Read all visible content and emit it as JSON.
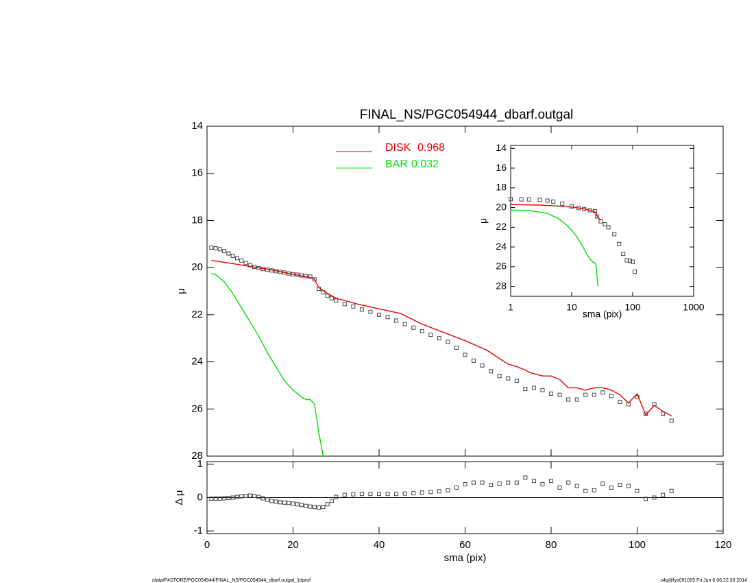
{
  "chart_data": [
    {
      "type": "line",
      "title": "FINAL_NS/PGC054944_dbarf.outgal",
      "ylabel": "μ",
      "xlim": [
        0,
        120
      ],
      "ylim": [
        28,
        14
      ],
      "yticks": [
        14,
        16,
        18,
        20,
        22,
        24,
        26,
        28
      ],
      "series": [
        {
          "color": "#444444",
          "marker": "square",
          "x": [
            1,
            2,
            3,
            4,
            5,
            6,
            7,
            8,
            9,
            10,
            11,
            12,
            13,
            14,
            15,
            16,
            17,
            18,
            19,
            20,
            21,
            22,
            23,
            24,
            25,
            26,
            27,
            28,
            29,
            30,
            32,
            34,
            36,
            38,
            40,
            42,
            44,
            46,
            48,
            50,
            52,
            54,
            56,
            58,
            60,
            62,
            64,
            66,
            68,
            70,
            72,
            74,
            76,
            78,
            80,
            82,
            84,
            86,
            88,
            90,
            92,
            94,
            96,
            98,
            100,
            102,
            104,
            106,
            108
          ],
          "values": [
            19.15,
            19.18,
            19.22,
            19.3,
            19.4,
            19.5,
            19.6,
            19.7,
            19.8,
            19.9,
            19.97,
            20.02,
            20.06,
            20.09,
            20.12,
            20.15,
            20.18,
            20.21,
            20.25,
            20.28,
            20.3,
            20.33,
            20.36,
            20.38,
            20.5,
            20.9,
            21.05,
            21.2,
            21.3,
            21.4,
            21.55,
            21.65,
            21.78,
            21.88,
            22.0,
            22.1,
            22.25,
            22.4,
            22.55,
            22.7,
            22.85,
            23.0,
            23.15,
            23.4,
            23.7,
            23.95,
            24.15,
            24.4,
            24.6,
            24.7,
            24.8,
            25.15,
            25.1,
            25.2,
            25.35,
            25.4,
            25.6,
            25.6,
            25.4,
            25.4,
            25.3,
            25.45,
            25.7,
            25.8,
            25.5,
            26.2,
            25.8,
            26.2,
            26.5
          ]
        },
        {
          "name": "DISK",
          "fraction": 0.968,
          "color": "#e00000",
          "x": [
            1,
            5,
            10,
            15,
            20,
            24,
            25,
            26,
            28,
            30,
            35,
            40,
            45,
            50,
            55,
            60,
            65,
            70,
            72,
            74,
            75,
            76,
            78,
            80,
            82,
            84,
            86,
            88,
            90,
            92,
            94,
            96,
            98,
            100,
            102,
            104,
            106,
            108
          ],
          "values": [
            19.7,
            19.8,
            19.95,
            20.1,
            20.28,
            20.42,
            20.5,
            20.85,
            21.1,
            21.3,
            21.55,
            21.75,
            21.95,
            22.4,
            22.75,
            23.1,
            23.5,
            24.1,
            24.2,
            24.35,
            24.45,
            24.5,
            24.6,
            24.6,
            24.75,
            25.1,
            25.1,
            25.2,
            25.1,
            25.1,
            25.2,
            25.4,
            25.75,
            25.35,
            26.25,
            25.85,
            26.1,
            26.3
          ]
        },
        {
          "name": "BAR",
          "fraction": 0.032,
          "color": "#00e000",
          "x": [
            1,
            2,
            4,
            6,
            8,
            10,
            12,
            14,
            16,
            18,
            20,
            22,
            23,
            24,
            25,
            26,
            27
          ],
          "values": [
            20.25,
            20.3,
            20.6,
            21.1,
            21.7,
            22.3,
            22.9,
            23.6,
            24.2,
            24.8,
            25.2,
            25.5,
            25.6,
            25.6,
            25.8,
            27.0,
            28.0
          ]
        }
      ]
    },
    {
      "type": "line",
      "xlabel": "sma (pix)",
      "ylabel": "Δ μ",
      "xlim": [
        0,
        120
      ],
      "xticks": [
        0,
        20,
        40,
        60,
        80,
        100,
        120
      ],
      "ylim": [
        -1.08,
        1.08
      ],
      "yticks": [
        -1,
        0,
        1
      ],
      "hline": 0,
      "series": [
        {
          "color": "#444444",
          "marker": "square",
          "x": [
            1,
            2,
            3,
            4,
            5,
            6,
            7,
            8,
            9,
            10,
            11,
            12,
            13,
            14,
            15,
            16,
            17,
            18,
            19,
            20,
            21,
            22,
            23,
            24,
            25,
            26,
            27,
            28,
            29,
            30,
            32,
            34,
            36,
            38,
            40,
            42,
            44,
            46,
            48,
            50,
            52,
            54,
            56,
            58,
            60,
            62,
            64,
            66,
            68,
            70,
            72,
            74,
            76,
            78,
            80,
            82,
            84,
            86,
            88,
            90,
            92,
            94,
            96,
            98,
            100,
            102,
            104,
            106,
            108
          ],
          "values": [
            -0.03,
            -0.03,
            -0.03,
            -0.02,
            -0.01,
            0.0,
            0.02,
            0.04,
            0.05,
            0.06,
            0.05,
            0.02,
            -0.02,
            -0.06,
            -0.1,
            -0.12,
            -0.14,
            -0.15,
            -0.16,
            -0.18,
            -0.2,
            -0.22,
            -0.25,
            -0.27,
            -0.28,
            -0.3,
            -0.28,
            -0.2,
            -0.1,
            0.02,
            0.08,
            0.1,
            0.11,
            0.11,
            0.11,
            0.11,
            0.11,
            0.12,
            0.13,
            0.15,
            0.17,
            0.19,
            0.22,
            0.3,
            0.4,
            0.45,
            0.45,
            0.38,
            0.42,
            0.45,
            0.45,
            0.6,
            0.5,
            0.4,
            0.5,
            0.3,
            0.45,
            0.35,
            0.2,
            0.22,
            0.42,
            0.3,
            0.38,
            0.35,
            0.2,
            -0.04,
            0.0,
            0.08,
            0.2
          ]
        }
      ]
    },
    {
      "type": "line",
      "xlabel": "sma (pix)",
      "ylabel": "μ",
      "xlog": true,
      "xlim": [
        1,
        1000
      ],
      "xticks": [
        1,
        10,
        100,
        1000
      ],
      "ylim": [
        29,
        13.7
      ],
      "yticks": [
        14,
        16,
        18,
        20,
        22,
        24,
        26,
        28
      ],
      "series": [
        {
          "color": "#444444",
          "marker": "square",
          "x": [
            1,
            1.5,
            2,
            3,
            4,
            5,
            7,
            10,
            13,
            16,
            20,
            24,
            26,
            30,
            35,
            40,
            50,
            60,
            70,
            80,
            90,
            100,
            108
          ],
          "values": [
            19.15,
            19.17,
            19.18,
            19.22,
            19.3,
            19.4,
            19.6,
            19.9,
            20.06,
            20.15,
            20.28,
            20.38,
            20.9,
            21.4,
            21.7,
            22.0,
            22.7,
            23.7,
            24.7,
            25.35,
            25.4,
            25.5,
            26.5
          ]
        },
        {
          "color": "#e00000",
          "x": [
            1,
            3,
            6,
            10,
            15,
            20,
            25,
            26,
            30
          ],
          "values": [
            19.7,
            19.75,
            19.85,
            19.95,
            20.1,
            20.28,
            20.5,
            20.85,
            21.3
          ]
        },
        {
          "color": "#00e000",
          "x": [
            1,
            2,
            4,
            6,
            8,
            10,
            12,
            14,
            16,
            18,
            20,
            22,
            23,
            24,
            25,
            26,
            27
          ],
          "values": [
            20.25,
            20.3,
            20.6,
            21.1,
            21.7,
            22.3,
            22.9,
            23.6,
            24.2,
            24.8,
            25.2,
            25.5,
            25.6,
            25.6,
            25.8,
            27.0,
            28.0
          ]
        }
      ]
    }
  ],
  "footer": {
    "path": "/data/P4STORE/PGC054944/FINAL_NS/PGC054944_dbarf.outgal_1dprof",
    "stamp": "s4g@fys091005  Fri Jun  6 06:22:30 2014"
  }
}
